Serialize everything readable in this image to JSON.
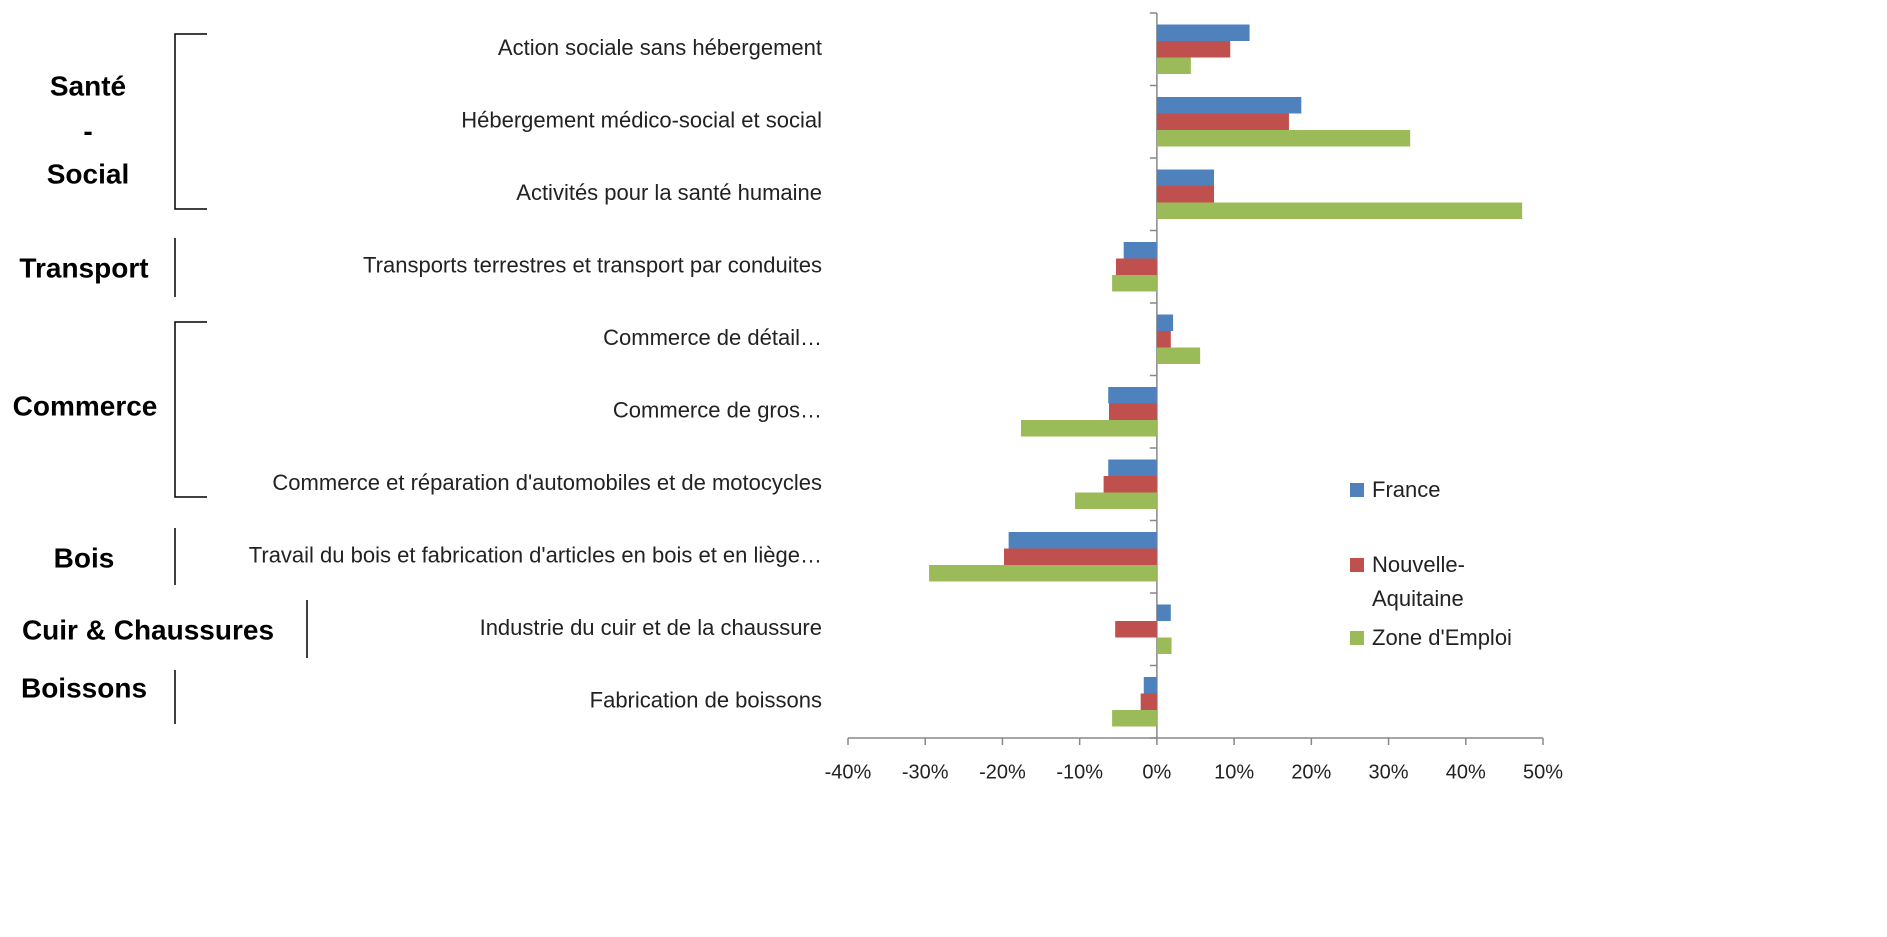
{
  "chart_data": {
    "type": "hbar",
    "categories": [
      "Action sociale sans hébergement",
      "Hébergement médico-social et social",
      "Activités pour la santé humaine",
      "Transports terrestres et transport par conduites",
      "Commerce de détail…",
      "Commerce de gros…",
      "Commerce et réparation d'automobiles et de motocycles",
      "Travail du bois et fabrication d'articles en bois et en liège…",
      "Industrie du cuir et de la chaussure",
      "Fabrication de boissons"
    ],
    "series": [
      {
        "name": "France",
        "color": "#4f81bd",
        "values": [
          12,
          18.7,
          7.4,
          -4.3,
          2.1,
          -6.3,
          -6.3,
          -19.2,
          1.8,
          -1.7
        ]
      },
      {
        "name": "Nouvelle-Aquitaine",
        "color": "#c0504d",
        "values": [
          9.5,
          17.1,
          7.4,
          -5.3,
          1.8,
          -6.2,
          -6.9,
          -19.8,
          -5.4,
          -2.1
        ]
      },
      {
        "name": "Zone d'Emploi",
        "color": "#9bbb59",
        "values": [
          4.4,
          32.8,
          47.3,
          -5.8,
          5.6,
          -17.6,
          -10.6,
          -29.5,
          1.9,
          -5.8
        ]
      }
    ],
    "xlim": [
      -40,
      50
    ],
    "xticks": [
      {
        "value": -40,
        "label": "-40%"
      },
      {
        "value": -30,
        "label": "-30%"
      },
      {
        "value": -20,
        "label": "-20%"
      },
      {
        "value": -10,
        "label": "-10%"
      },
      {
        "value": 0,
        "label": "0%"
      },
      {
        "value": 10,
        "label": "10%"
      },
      {
        "value": 20,
        "label": "20%"
      },
      {
        "value": 30,
        "label": "30%"
      },
      {
        "value": 40,
        "label": "40%"
      },
      {
        "value": 50,
        "label": "50%"
      }
    ],
    "legend": "right",
    "groups": [
      {
        "lines": [
          "Santé",
          "-",
          "Social"
        ]
      },
      {
        "lines": [
          "Transport"
        ]
      },
      {
        "lines": [
          "Commerce"
        ]
      },
      {
        "lines": [
          "Bois"
        ]
      },
      {
        "lines": [
          "Cuir & Chaussures"
        ]
      },
      {
        "lines": [
          "Boissons"
        ]
      }
    ]
  }
}
